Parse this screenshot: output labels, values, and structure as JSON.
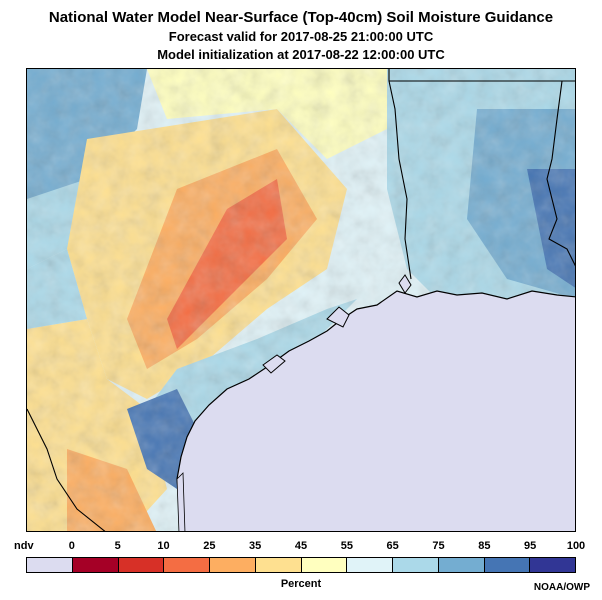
{
  "title": "National Water Model Near-Surface (Top-40cm) Soil Moisture Guidance",
  "subtitle_forecast": "Forecast valid for 2017-08-25 21:00:00 UTC",
  "subtitle_init": "Model initialization at 2017-08-22 12:00:00 UTC",
  "legend": {
    "ndv_label": "ndv",
    "tick_labels": [
      "0",
      "5",
      "10",
      "25",
      "35",
      "45",
      "55",
      "65",
      "75",
      "85",
      "95",
      "100"
    ],
    "colors": [
      "#dcdcf0",
      "#a50026",
      "#d73027",
      "#f46d43",
      "#fdae61",
      "#fee090",
      "#ffffbf",
      "#e0f3f8",
      "#abd9e9",
      "#74add1",
      "#4575b4",
      "#313695"
    ],
    "units": "Percent"
  },
  "credit": "NOAA/OWP",
  "map": {
    "water_color": "#dcdcf0",
    "border_color": "#000000"
  }
}
